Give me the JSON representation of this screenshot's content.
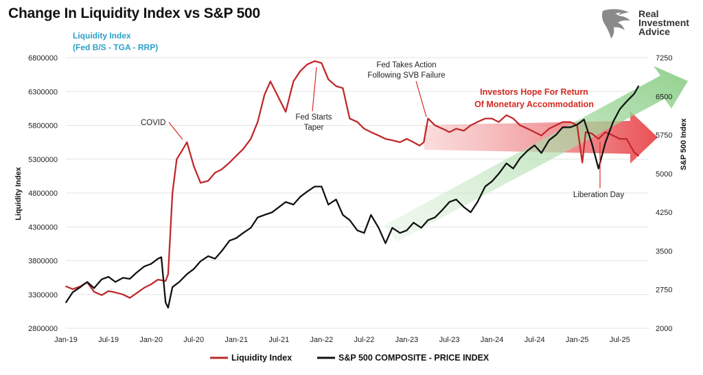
{
  "chart_data": {
    "type": "line",
    "title": "Change In Liquidity Index vs S&P 500",
    "xlabel": "",
    "ylabel_left": "Liquidity Index",
    "ylabel_right": "S&P 500 Index",
    "x_tick_labels": [
      "Jan-19",
      "Jul-19",
      "Jan-20",
      "Jul-20",
      "Jan-21",
      "Jul-21",
      "Jan-22",
      "Jul-22",
      "Jan-23",
      "Jul-23",
      "Jan-24",
      "Jul-24",
      "Jan-25",
      "Jul-25"
    ],
    "y_left_ticks": [
      "2800000",
      "3300000",
      "3800000",
      "4300000",
      "4800000",
      "5300000",
      "5800000",
      "6300000",
      "6800000"
    ],
    "y_right_ticks": [
      "2000",
      "2750",
      "3500",
      "4250",
      "5000",
      "5750",
      "6500",
      "7250"
    ],
    "ylim_left": [
      2800000,
      6800000
    ],
    "ylim_right": [
      2000,
      7250
    ],
    "grid": "horizontal",
    "legend_position": "bottom",
    "series": [
      {
        "name": "Liquidity Index",
        "axis": "left",
        "color": "#c0282b",
        "points": [
          [
            2019.0,
            3420000
          ],
          [
            2019.08,
            3380000
          ],
          [
            2019.17,
            3420000
          ],
          [
            2019.25,
            3480000
          ],
          [
            2019.33,
            3340000
          ],
          [
            2019.42,
            3290000
          ],
          [
            2019.5,
            3350000
          ],
          [
            2019.58,
            3330000
          ],
          [
            2019.67,
            3300000
          ],
          [
            2019.75,
            3250000
          ],
          [
            2019.83,
            3320000
          ],
          [
            2019.92,
            3400000
          ],
          [
            2020.0,
            3450000
          ],
          [
            2020.08,
            3520000
          ],
          [
            2020.17,
            3500000
          ],
          [
            2020.2,
            3600000
          ],
          [
            2020.25,
            4800000
          ],
          [
            2020.3,
            5300000
          ],
          [
            2020.35,
            5400000
          ],
          [
            2020.42,
            5550000
          ],
          [
            2020.5,
            5200000
          ],
          [
            2020.58,
            4950000
          ],
          [
            2020.67,
            4980000
          ],
          [
            2020.75,
            5100000
          ],
          [
            2020.83,
            5150000
          ],
          [
            2020.92,
            5250000
          ],
          [
            2021.0,
            5350000
          ],
          [
            2021.08,
            5450000
          ],
          [
            2021.17,
            5600000
          ],
          [
            2021.25,
            5850000
          ],
          [
            2021.33,
            6250000
          ],
          [
            2021.4,
            6450000
          ],
          [
            2021.5,
            6200000
          ],
          [
            2021.58,
            6000000
          ],
          [
            2021.67,
            6450000
          ],
          [
            2021.75,
            6600000
          ],
          [
            2021.83,
            6700000
          ],
          [
            2021.92,
            6750000
          ],
          [
            2022.0,
            6720000
          ],
          [
            2022.08,
            6480000
          ],
          [
            2022.17,
            6380000
          ],
          [
            2022.25,
            6350000
          ],
          [
            2022.33,
            5900000
          ],
          [
            2022.42,
            5850000
          ],
          [
            2022.5,
            5750000
          ],
          [
            2022.58,
            5700000
          ],
          [
            2022.67,
            5650000
          ],
          [
            2022.75,
            5600000
          ],
          [
            2022.83,
            5580000
          ],
          [
            2022.92,
            5550000
          ],
          [
            2023.0,
            5600000
          ],
          [
            2023.08,
            5550000
          ],
          [
            2023.15,
            5500000
          ],
          [
            2023.2,
            5550000
          ],
          [
            2023.25,
            5900000
          ],
          [
            2023.33,
            5800000
          ],
          [
            2023.42,
            5750000
          ],
          [
            2023.5,
            5700000
          ],
          [
            2023.58,
            5750000
          ],
          [
            2023.67,
            5720000
          ],
          [
            2023.75,
            5800000
          ],
          [
            2023.83,
            5850000
          ],
          [
            2023.92,
            5900000
          ],
          [
            2024.0,
            5900000
          ],
          [
            2024.08,
            5850000
          ],
          [
            2024.17,
            5950000
          ],
          [
            2024.25,
            5900000
          ],
          [
            2024.33,
            5800000
          ],
          [
            2024.42,
            5750000
          ],
          [
            2024.5,
            5700000
          ],
          [
            2024.58,
            5650000
          ],
          [
            2024.67,
            5750000
          ],
          [
            2024.75,
            5800000
          ],
          [
            2024.83,
            5850000
          ],
          [
            2024.92,
            5850000
          ],
          [
            2025.0,
            5800000
          ],
          [
            2025.06,
            5250000
          ],
          [
            2025.1,
            5700000
          ],
          [
            2025.17,
            5680000
          ],
          [
            2025.25,
            5600000
          ],
          [
            2025.33,
            5700000
          ],
          [
            2025.42,
            5650000
          ],
          [
            2025.5,
            5600000
          ],
          [
            2025.58,
            5600000
          ],
          [
            2025.67,
            5400000
          ],
          [
            2025.72,
            5350000
          ]
        ]
      },
      {
        "name": "S&P 500 COMPOSITE - PRICE INDEX",
        "axis": "right",
        "color": "#111111",
        "points": [
          [
            2019.0,
            2500
          ],
          [
            2019.08,
            2700
          ],
          [
            2019.17,
            2800
          ],
          [
            2019.25,
            2900
          ],
          [
            2019.33,
            2780
          ],
          [
            2019.42,
            2950
          ],
          [
            2019.5,
            3000
          ],
          [
            2019.58,
            2900
          ],
          [
            2019.67,
            2980
          ],
          [
            2019.75,
            2960
          ],
          [
            2019.83,
            3080
          ],
          [
            2019.92,
            3200
          ],
          [
            2020.0,
            3250
          ],
          [
            2020.08,
            3350
          ],
          [
            2020.12,
            3380
          ],
          [
            2020.17,
            2500
          ],
          [
            2020.2,
            2400
          ],
          [
            2020.25,
            2800
          ],
          [
            2020.33,
            2900
          ],
          [
            2020.42,
            3050
          ],
          [
            2020.5,
            3150
          ],
          [
            2020.58,
            3300
          ],
          [
            2020.67,
            3400
          ],
          [
            2020.75,
            3350
          ],
          [
            2020.83,
            3500
          ],
          [
            2020.92,
            3700
          ],
          [
            2021.0,
            3750
          ],
          [
            2021.08,
            3850
          ],
          [
            2021.17,
            3950
          ],
          [
            2021.25,
            4150
          ],
          [
            2021.33,
            4200
          ],
          [
            2021.42,
            4250
          ],
          [
            2021.5,
            4350
          ],
          [
            2021.58,
            4450
          ],
          [
            2021.67,
            4400
          ],
          [
            2021.75,
            4550
          ],
          [
            2021.83,
            4650
          ],
          [
            2021.92,
            4750
          ],
          [
            2022.0,
            4750
          ],
          [
            2022.08,
            4400
          ],
          [
            2022.17,
            4500
          ],
          [
            2022.25,
            4200
          ],
          [
            2022.33,
            4100
          ],
          [
            2022.42,
            3900
          ],
          [
            2022.5,
            3850
          ],
          [
            2022.58,
            4200
          ],
          [
            2022.67,
            3950
          ],
          [
            2022.75,
            3650
          ],
          [
            2022.83,
            3950
          ],
          [
            2022.92,
            3850
          ],
          [
            2023.0,
            3900
          ],
          [
            2023.08,
            4050
          ],
          [
            2023.17,
            3950
          ],
          [
            2023.25,
            4100
          ],
          [
            2023.33,
            4150
          ],
          [
            2023.42,
            4300
          ],
          [
            2023.5,
            4450
          ],
          [
            2023.58,
            4500
          ],
          [
            2023.67,
            4350
          ],
          [
            2023.75,
            4250
          ],
          [
            2023.83,
            4450
          ],
          [
            2023.92,
            4750
          ],
          [
            2024.0,
            4850
          ],
          [
            2024.08,
            5000
          ],
          [
            2024.17,
            5200
          ],
          [
            2024.25,
            5100
          ],
          [
            2024.33,
            5300
          ],
          [
            2024.42,
            5450
          ],
          [
            2024.5,
            5550
          ],
          [
            2024.58,
            5400
          ],
          [
            2024.67,
            5650
          ],
          [
            2024.75,
            5750
          ],
          [
            2024.83,
            5900
          ],
          [
            2024.92,
            5900
          ],
          [
            2025.0,
            5950
          ],
          [
            2025.08,
            6050
          ],
          [
            2025.17,
            5600
          ],
          [
            2025.25,
            5100
          ],
          [
            2025.33,
            5600
          ],
          [
            2025.42,
            6000
          ],
          [
            2025.5,
            6250
          ],
          [
            2025.58,
            6400
          ],
          [
            2025.67,
            6550
          ],
          [
            2025.72,
            6700
          ]
        ]
      }
    ],
    "annotations": {
      "liquidity_label": "Liquidity Index",
      "liquidity_formula": "(Fed B/S - TGA - RRP)",
      "covid": "COVID",
      "fed_starts_taper_1": "Fed Starts",
      "fed_starts_taper_2": "Taper",
      "fed_action_1": "Fed Takes Action",
      "fed_action_2": "Following SVB Failure",
      "investors_hope_1": "Investors Hope For Return",
      "investors_hope_2": "Of Monetary Accommodation",
      "liberation_day": "Liberation Day"
    },
    "colors": {
      "liquidity": "#c0282b",
      "sp500": "#111111",
      "red_arrow": "#e8474b",
      "green_arrow": "#7fc97a",
      "blue_label": "#2aa0c9"
    }
  },
  "brand": {
    "line1": "Real",
    "line2": "Investment",
    "line3": "Advice",
    "icon": "eagle-icon"
  }
}
